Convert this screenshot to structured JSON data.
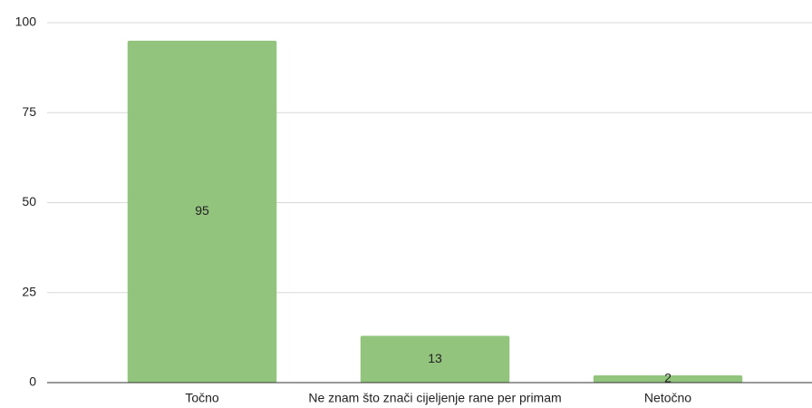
{
  "chart_data": {
    "type": "bar",
    "categories": [
      "Točno",
      "Ne znam što znači cijeljenje rane per primam",
      "Netočno"
    ],
    "values": [
      95,
      13,
      2
    ],
    "color": "#93c47d",
    "ylim": [
      0,
      100
    ],
    "yticks": [
      0,
      25,
      50,
      75,
      100
    ],
    "grid": true
  }
}
